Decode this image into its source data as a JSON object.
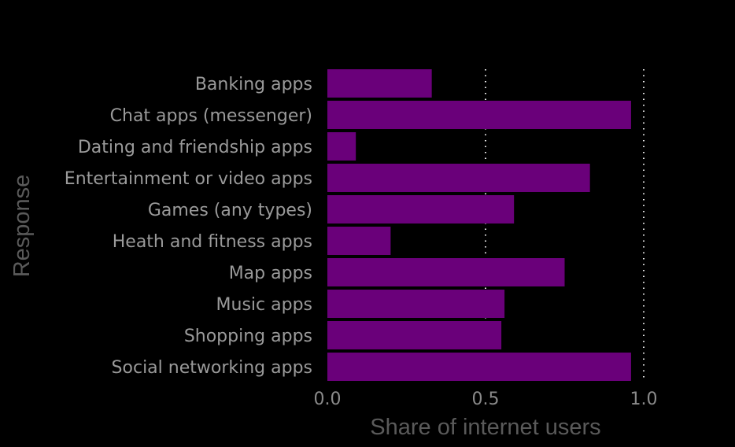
{
  "chart_data": {
    "type": "bar",
    "orientation": "horizontal",
    "categories": [
      "Banking apps",
      "Chat apps (messenger)",
      "Dating and friendship apps",
      "Entertainment or video apps",
      "Games (any types)",
      "Heath and fitness apps",
      "Map apps",
      "Music apps",
      "Shopping apps",
      "Social networking apps"
    ],
    "values": [
      0.33,
      0.96,
      0.09,
      0.83,
      0.59,
      0.2,
      0.75,
      0.56,
      0.55,
      0.96
    ],
    "xlabel": "Share of internet users",
    "ylabel": "Response",
    "xlim": [
      0,
      1.0
    ],
    "xticks": [
      0.0,
      0.5,
      1.0
    ],
    "xtick_labels": [
      "0.0",
      "0.5",
      "1.0"
    ],
    "grid": "vertical dotted",
    "bar_color": "#6a007a",
    "background": "#000000"
  }
}
